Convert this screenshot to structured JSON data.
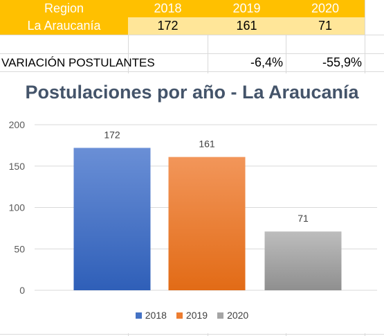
{
  "table": {
    "headers": [
      "Region",
      "2018",
      "2019",
      "2020"
    ],
    "row": {
      "label": "La Araucanía",
      "values": [
        "172",
        "161",
        "71"
      ]
    },
    "variation": {
      "label": "VARIACIÓN POSTULANTES",
      "values": [
        "-6,4%",
        "-55,9%"
      ]
    }
  },
  "colors": {
    "header_bg": "#ffc000",
    "value_bg": "#ffe699",
    "title": "#44546a",
    "s2018": "#4472c4",
    "s2019": "#ed7d31",
    "s2020": "#a5a5a5"
  },
  "chart_data": {
    "type": "bar",
    "title": "Postulaciones por año - La Araucanía",
    "categories": [
      "2018",
      "2019",
      "2020"
    ],
    "values": [
      172,
      161,
      71
    ],
    "data_labels": [
      "172",
      "161",
      "71"
    ],
    "yticks": [
      "0",
      "50",
      "100",
      "150",
      "200"
    ],
    "ylim": [
      0,
      200
    ],
    "grid": true,
    "legend": {
      "position": "bottom",
      "entries": [
        "2018",
        "2019",
        "2020"
      ]
    }
  }
}
